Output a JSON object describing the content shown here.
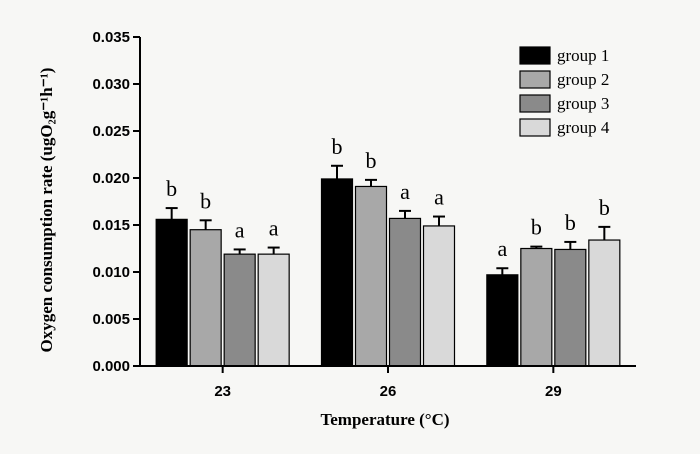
{
  "chart_data": {
    "type": "bar",
    "xlabel": "Temperature",
    "xlabel_unit": "(°C)",
    "ylabel": "Oxygen consumption rate",
    "ylabel_unit": "(ugO₂g⁻¹h⁻¹)",
    "categories": [
      "23",
      "26",
      "29"
    ],
    "ylim": [
      0,
      0.035
    ],
    "yticks": [
      "0.000",
      "0.005",
      "0.010",
      "0.015",
      "0.020",
      "0.025",
      "0.030",
      "0.035"
    ],
    "legend_position": "top-right",
    "series": [
      {
        "name": "group 1",
        "color": "#000000",
        "values": [
          0.0156,
          0.0199,
          0.0097
        ],
        "errors": [
          0.0012,
          0.0014,
          0.0007
        ],
        "labels": [
          "b",
          "b",
          "a"
        ]
      },
      {
        "name": "group 2",
        "color": "#a8a8a8",
        "values": [
          0.0145,
          0.0191,
          0.0125
        ],
        "errors": [
          0.001,
          0.0007,
          0.0002
        ],
        "labels": [
          "b",
          "b",
          "b"
        ]
      },
      {
        "name": "group 3",
        "color": "#8a8a8a",
        "values": [
          0.0119,
          0.0157,
          0.0124
        ],
        "errors": [
          0.0005,
          0.0008,
          0.0008
        ],
        "labels": [
          "a",
          "a",
          "b"
        ]
      },
      {
        "name": "group 4",
        "color": "#d9d9d9",
        "values": [
          0.0119,
          0.0149,
          0.0134
        ],
        "errors": [
          0.0007,
          0.001,
          0.0014
        ],
        "labels": [
          "a",
          "a",
          "b"
        ]
      }
    ]
  }
}
